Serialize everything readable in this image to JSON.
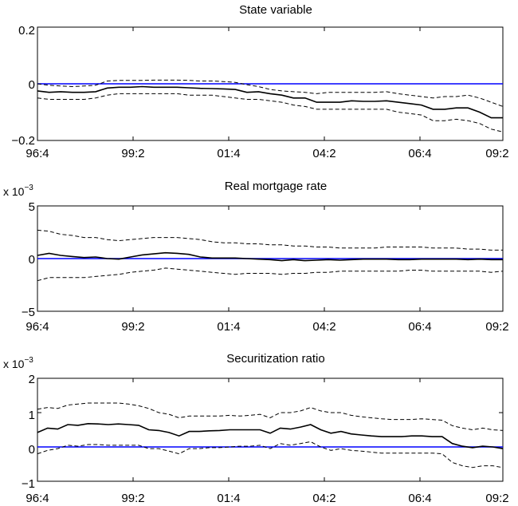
{
  "figure": {
    "x_tick_labels": [
      "96:4",
      "99:2",
      "01:4",
      "04:2",
      "06:4",
      "09:2"
    ],
    "colors": {
      "zero_line": "#0000ff",
      "estimate": "#000000",
      "bands": "#000000",
      "axes": "#000000"
    }
  },
  "chart_data": [
    {
      "type": "line",
      "title": "State variable",
      "xlabel": "",
      "ylabel": "",
      "multiplier": "",
      "x_range": [
        "96:4",
        "09:2"
      ],
      "x_tick_labels": [
        "96:4",
        "99:2",
        "01:4",
        "04:2",
        "06:4",
        "09:2"
      ],
      "ylim": [
        -0.2,
        0.2
      ],
      "y_tick_labels": [
        "0.2",
        "0",
        "−0.2"
      ],
      "horizontal_reference_line": 0,
      "grid": false,
      "series": [
        {
          "role": "estimate",
          "style": "solid",
          "values": [
            -0.025,
            -0.03,
            -0.028,
            -0.03,
            -0.03,
            -0.028,
            -0.015,
            -0.012,
            -0.012,
            -0.01,
            -0.012,
            -0.012,
            -0.012,
            -0.014,
            -0.016,
            -0.017,
            -0.018,
            -0.02,
            -0.03,
            -0.028,
            -0.035,
            -0.04,
            -0.05,
            -0.05,
            -0.065,
            -0.065,
            -0.065,
            -0.06,
            -0.062,
            -0.062,
            -0.06,
            -0.065,
            -0.07,
            -0.075,
            -0.09,
            -0.09,
            -0.085,
            -0.085,
            -0.1,
            -0.12,
            -0.12
          ]
        },
        {
          "role": "upper band",
          "style": "dashed",
          "values": [
            0.0,
            -0.005,
            -0.008,
            -0.01,
            -0.008,
            -0.005,
            0.01,
            0.012,
            0.012,
            0.012,
            0.013,
            0.013,
            0.013,
            0.012,
            0.01,
            0.01,
            0.008,
            0.005,
            -0.003,
            -0.01,
            -0.02,
            -0.025,
            -0.028,
            -0.03,
            -0.035,
            -0.03,
            -0.03,
            -0.03,
            -0.03,
            -0.03,
            -0.028,
            -0.035,
            -0.04,
            -0.045,
            -0.05,
            -0.045,
            -0.045,
            -0.04,
            -0.05,
            -0.065,
            -0.08
          ]
        },
        {
          "role": "lower band",
          "style": "dashed",
          "values": [
            -0.05,
            -0.055,
            -0.055,
            -0.055,
            -0.055,
            -0.05,
            -0.04,
            -0.035,
            -0.035,
            -0.035,
            -0.035,
            -0.035,
            -0.035,
            -0.04,
            -0.04,
            -0.04,
            -0.045,
            -0.05,
            -0.055,
            -0.055,
            -0.06,
            -0.065,
            -0.075,
            -0.08,
            -0.09,
            -0.09,
            -0.09,
            -0.09,
            -0.09,
            -0.09,
            -0.09,
            -0.1,
            -0.105,
            -0.11,
            -0.13,
            -0.13,
            -0.125,
            -0.13,
            -0.14,
            -0.16,
            -0.17
          ]
        }
      ]
    },
    {
      "type": "line",
      "title": "Real mortgage rate",
      "xlabel": "",
      "ylabel": "",
      "multiplier": "x 10",
      "multiplier_exponent": "−3",
      "x_range": [
        "96:4",
        "09:2"
      ],
      "x_tick_labels": [
        "96:4",
        "99:2",
        "01:4",
        "04:2",
        "06:4",
        "09:2"
      ],
      "ylim": [
        -5,
        5
      ],
      "y_tick_labels": [
        "5",
        "0",
        "−5"
      ],
      "horizontal_reference_line": 0,
      "grid": false,
      "series": [
        {
          "role": "estimate",
          "style": "solid",
          "values": [
            0.3,
            0.5,
            0.3,
            0.2,
            0.1,
            0.15,
            0.0,
            -0.05,
            0.15,
            0.35,
            0.45,
            0.55,
            0.5,
            0.4,
            0.15,
            0.05,
            0.05,
            0.05,
            0.0,
            -0.05,
            -0.1,
            -0.2,
            -0.1,
            -0.2,
            -0.15,
            -0.1,
            -0.15,
            -0.1,
            -0.05,
            -0.05,
            -0.05,
            -0.1,
            -0.1,
            -0.05,
            -0.05,
            -0.05,
            -0.05,
            -0.1,
            -0.05,
            -0.1,
            -0.1
          ]
        },
        {
          "role": "upper band",
          "style": "dashed",
          "values": [
            2.7,
            2.6,
            2.3,
            2.2,
            2.0,
            2.0,
            1.8,
            1.7,
            1.8,
            1.9,
            2.0,
            2.0,
            2.0,
            1.9,
            1.8,
            1.6,
            1.5,
            1.5,
            1.4,
            1.4,
            1.3,
            1.3,
            1.2,
            1.2,
            1.1,
            1.1,
            1.0,
            1.0,
            1.0,
            1.0,
            1.1,
            1.1,
            1.1,
            1.1,
            1.0,
            1.0,
            1.0,
            0.9,
            0.9,
            0.8,
            0.8
          ]
        },
        {
          "role": "lower band",
          "style": "dashed",
          "values": [
            -2.1,
            -1.8,
            -1.8,
            -1.8,
            -1.8,
            -1.7,
            -1.6,
            -1.5,
            -1.3,
            -1.2,
            -1.1,
            -0.9,
            -1.0,
            -1.1,
            -1.2,
            -1.3,
            -1.4,
            -1.5,
            -1.4,
            -1.4,
            -1.4,
            -1.5,
            -1.4,
            -1.4,
            -1.3,
            -1.3,
            -1.2,
            -1.2,
            -1.2,
            -1.2,
            -1.2,
            -1.2,
            -1.1,
            -1.1,
            -1.2,
            -1.2,
            -1.2,
            -1.2,
            -1.2,
            -1.3,
            -1.2
          ]
        }
      ]
    },
    {
      "type": "line",
      "title": "Securitization ratio",
      "xlabel": "",
      "ylabel": "",
      "multiplier": "x 10",
      "multiplier_exponent": "−3",
      "x_range": [
        "96:4",
        "09:2"
      ],
      "x_tick_labels": [
        "96:4",
        "99:2",
        "01:4",
        "04:2",
        "06:4",
        "09:2"
      ],
      "ylim": [
        -1,
        2
      ],
      "y_tick_labels": [
        "2",
        "1",
        "0",
        "−1"
      ],
      "horizontal_reference_line": 0,
      "grid": false,
      "series": [
        {
          "role": "estimate",
          "style": "solid",
          "values": [
            0.42,
            0.55,
            0.52,
            0.65,
            0.63,
            0.68,
            0.67,
            0.65,
            0.67,
            0.65,
            0.63,
            0.5,
            0.48,
            0.42,
            0.32,
            0.45,
            0.45,
            0.47,
            0.48,
            0.5,
            0.5,
            0.5,
            0.5,
            0.4,
            0.55,
            0.52,
            0.58,
            0.65,
            0.5,
            0.4,
            0.45,
            0.38,
            0.35,
            0.32,
            0.3,
            0.3,
            0.3,
            0.32,
            0.32,
            0.3,
            0.3,
            0.1,
            0.02,
            -0.02,
            0.02,
            0.0,
            -0.05
          ]
        },
        {
          "role": "upper band",
          "style": "dashed",
          "values": [
            1.1,
            1.15,
            1.12,
            1.22,
            1.25,
            1.28,
            1.28,
            1.28,
            1.28,
            1.25,
            1.2,
            1.12,
            1.0,
            0.95,
            0.85,
            0.9,
            0.9,
            0.9,
            0.9,
            0.92,
            0.9,
            0.92,
            0.95,
            0.85,
            1.0,
            1.0,
            1.05,
            1.15,
            1.05,
            1.0,
            1.0,
            0.92,
            0.88,
            0.85,
            0.82,
            0.8,
            0.8,
            0.8,
            0.82,
            0.8,
            0.78,
            0.62,
            0.55,
            0.5,
            0.55,
            0.5,
            0.48
          ]
        },
        {
          "role": "lower band",
          "style": "dashed",
          "values": [
            -0.2,
            -0.1,
            -0.05,
            0.05,
            0.02,
            0.07,
            0.07,
            0.05,
            0.05,
            0.05,
            0.05,
            -0.05,
            -0.05,
            -0.12,
            -0.2,
            -0.05,
            -0.05,
            -0.02,
            -0.02,
            0.0,
            0.02,
            0.02,
            0.05,
            -0.05,
            0.1,
            0.05,
            0.1,
            0.15,
            0.0,
            -0.1,
            -0.05,
            -0.1,
            -0.12,
            -0.15,
            -0.18,
            -0.18,
            -0.18,
            -0.18,
            -0.18,
            -0.18,
            -0.2,
            -0.45,
            -0.55,
            -0.6,
            -0.55,
            -0.55,
            -0.6
          ]
        }
      ]
    }
  ]
}
